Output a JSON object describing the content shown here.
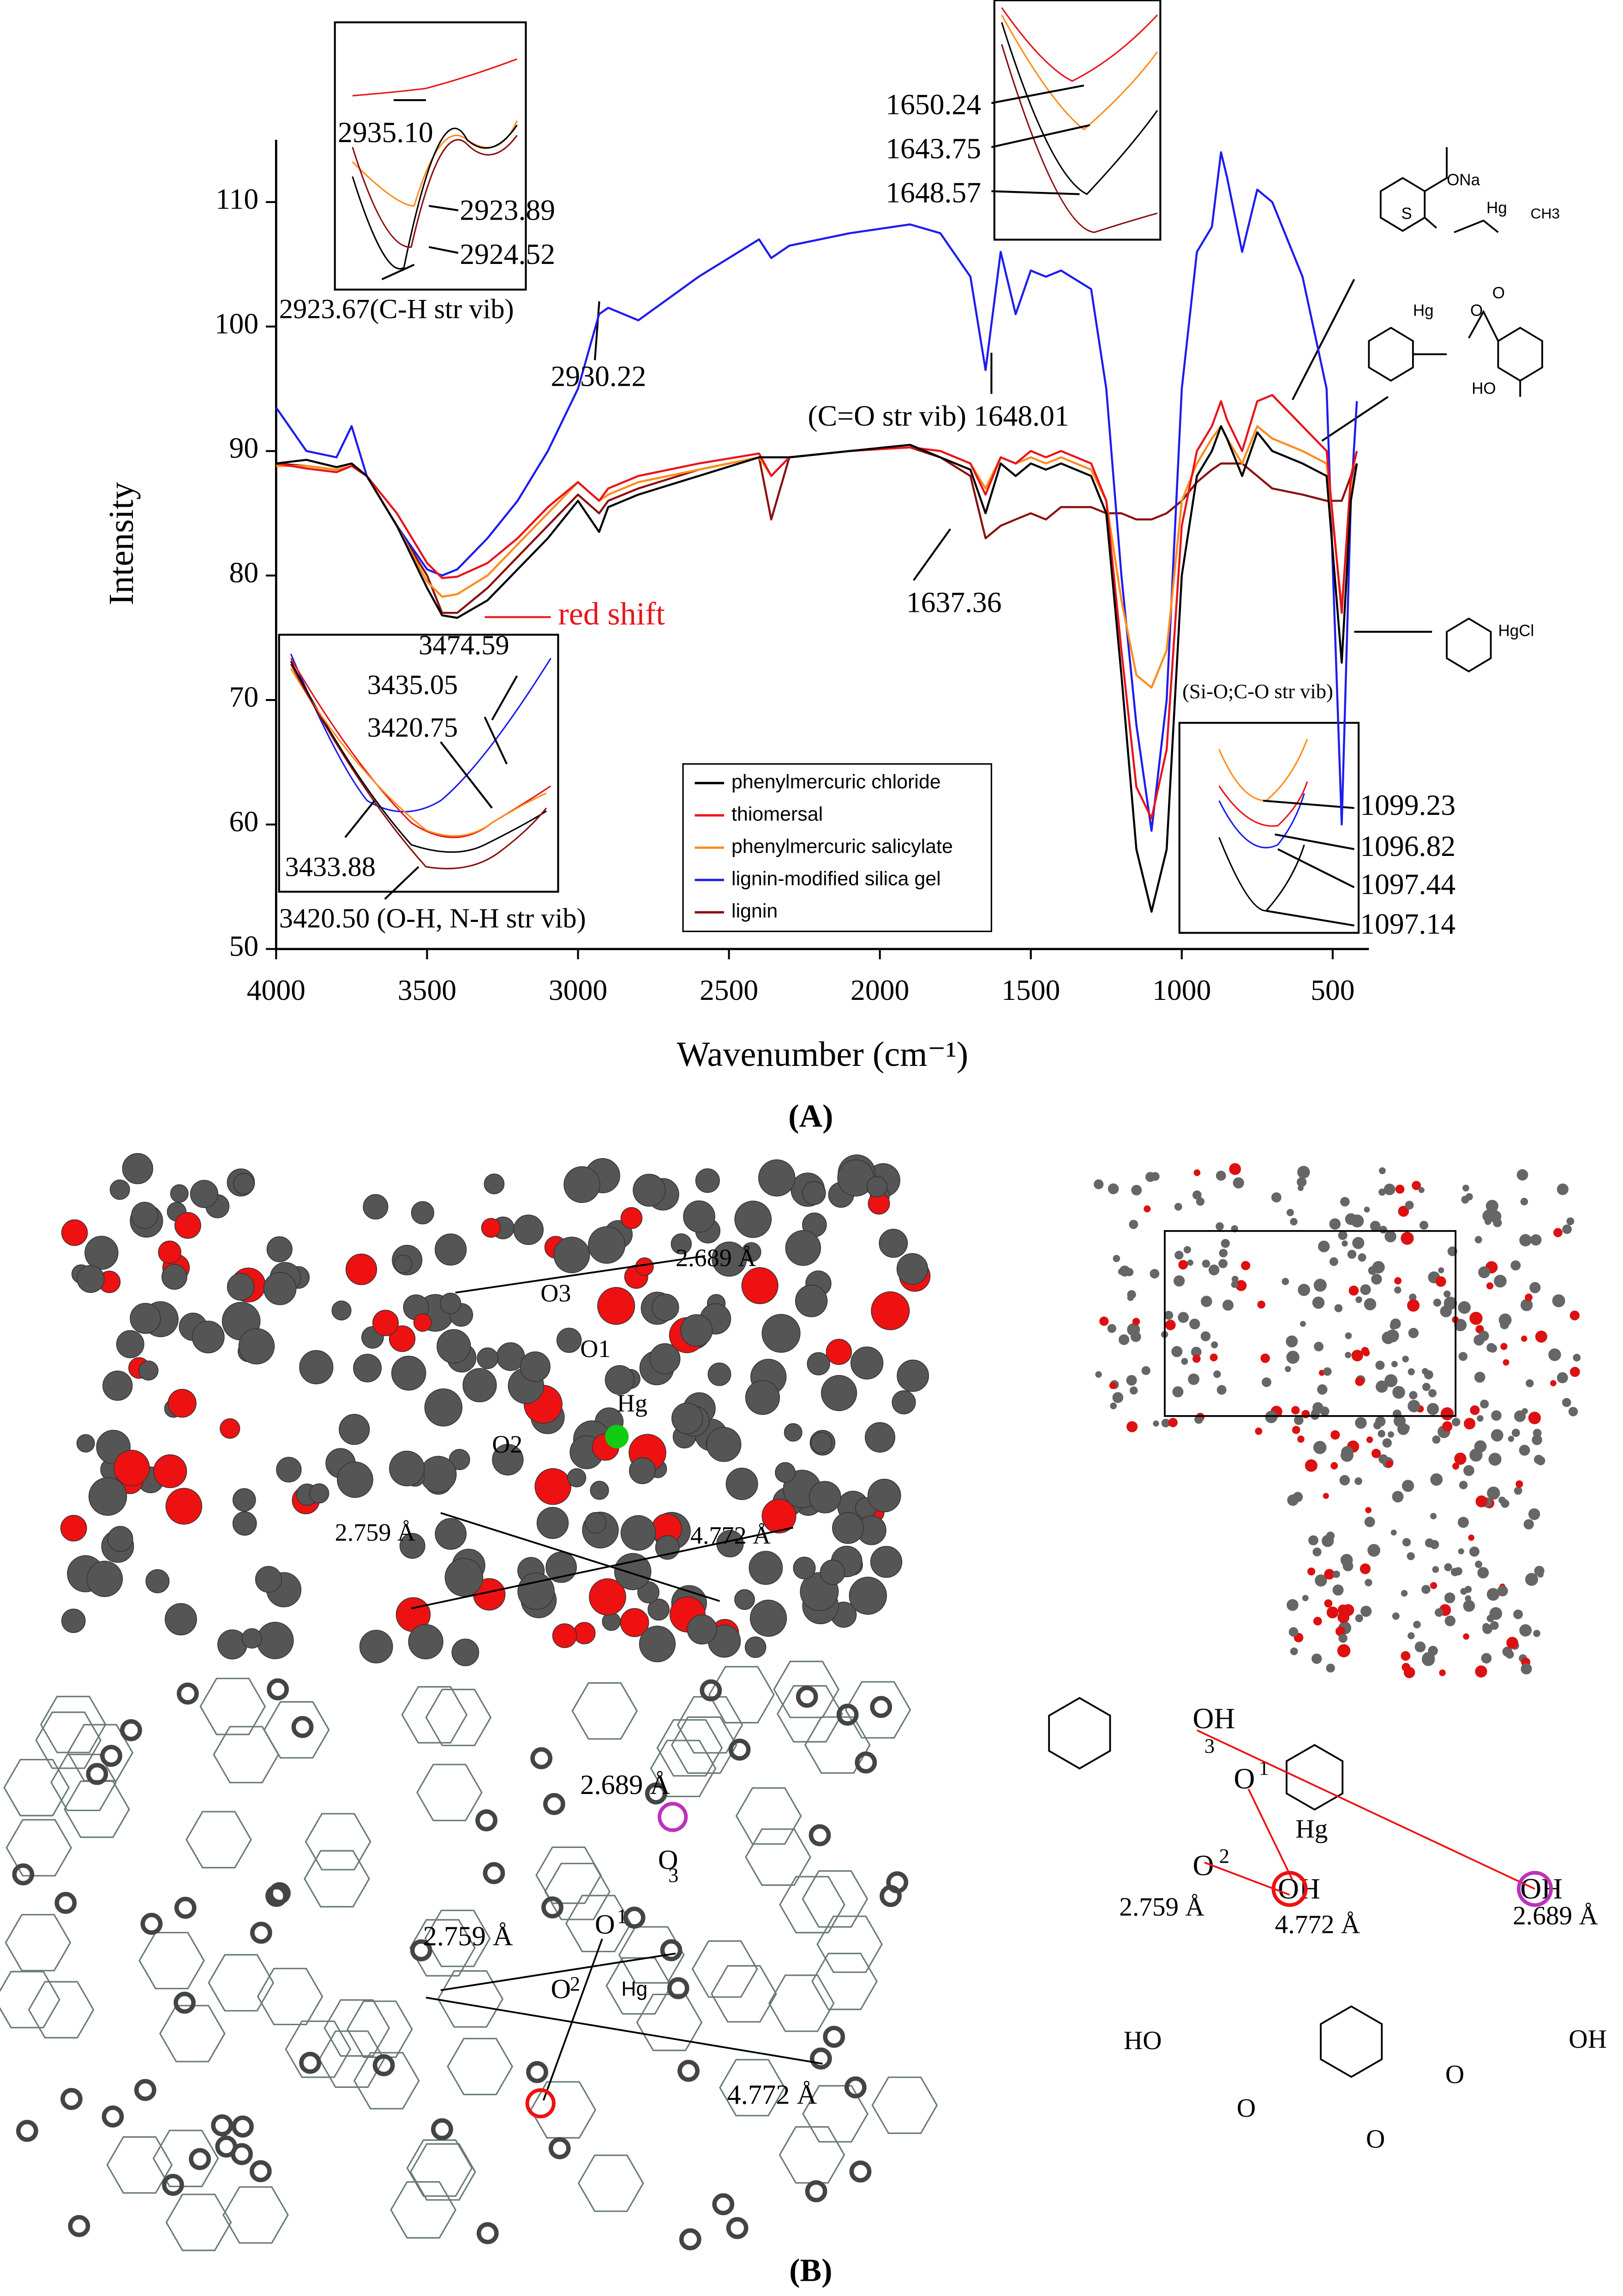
{
  "chart_data": {
    "type": "line",
    "x_label": "Wavenumber (cm⁻¹)",
    "y_label": "Intensity",
    "xlim": [
      4000,
      380
    ],
    "ylim": [
      50,
      115
    ],
    "xticks": [
      4000,
      3500,
      3000,
      2500,
      2000,
      1500,
      1000,
      500
    ],
    "yticks": [
      50,
      60,
      70,
      80,
      90,
      100,
      110
    ],
    "legend": "lower center",
    "x": [
      4000,
      3900,
      3800,
      3750,
      3700,
      3600,
      3500,
      3450,
      3400,
      3300,
      3200,
      3100,
      3000,
      2930,
      2900,
      2800,
      2600,
      2400,
      2360,
      2300,
      2100,
      1900,
      1800,
      1700,
      1650,
      1600,
      1550,
      1500,
      1450,
      1400,
      1300,
      1250,
      1200,
      1150,
      1100,
      1050,
      1000,
      950,
      900,
      870,
      850,
      800,
      750,
      700,
      600,
      520,
      470,
      440,
      420
    ],
    "series": [
      {
        "name": "phenylmercuric chloride",
        "color": "#000000",
        "values": [
          89,
          89.3,
          88.7,
          89,
          88,
          84,
          79,
          76.8,
          76.6,
          78,
          80.5,
          83,
          86,
          83.5,
          85.5,
          86.5,
          88,
          89.5,
          89.5,
          89.5,
          90,
          90.5,
          89.5,
          88.5,
          85,
          89,
          88,
          89,
          88.5,
          89,
          88,
          85,
          72,
          58,
          53,
          58,
          80,
          88,
          90,
          92,
          91,
          88,
          91.5,
          90,
          89,
          88,
          73,
          86,
          89
        ]
      },
      {
        "name": "thiomersal",
        "color": "#e8141b",
        "values": [
          89,
          88.6,
          88.3,
          88.8,
          88,
          85,
          81,
          79.8,
          79.9,
          81,
          83,
          85.5,
          87.5,
          86,
          87,
          88,
          89,
          89.8,
          88,
          89.5,
          90,
          90.3,
          90,
          89,
          86.5,
          89.5,
          89,
          90,
          89.5,
          90,
          89,
          86,
          74,
          63,
          60.5,
          66,
          84,
          90,
          92,
          94,
          92.5,
          90,
          94,
          94.5,
          92,
          90,
          77,
          88,
          90
        ]
      },
      {
        "name": "phenylmercuric salicylate",
        "color": "#ff8c1a",
        "values": [
          88.8,
          88.8,
          88.5,
          88.8,
          88,
          84,
          79.5,
          78.3,
          78.5,
          80,
          82.5,
          85,
          87.5,
          86,
          86.5,
          87.5,
          88.5,
          89.5,
          88,
          89.5,
          90,
          90.3,
          90,
          89,
          87,
          89.5,
          89,
          89.5,
          89,
          89.5,
          88.5,
          86,
          78,
          72,
          71,
          74,
          86,
          89,
          91,
          92,
          91,
          89,
          92,
          91,
          90,
          89,
          77.5,
          87,
          89
        ]
      },
      {
        "name": "lignin-modified silica gel",
        "color": "#1c1cf0",
        "values": [
          93.5,
          90,
          89.5,
          92,
          88,
          84,
          80.5,
          80,
          80.5,
          83,
          86,
          90,
          95,
          101,
          101.5,
          100.5,
          104,
          107,
          105.5,
          106.5,
          107.5,
          108.2,
          107.5,
          104,
          96.5,
          106,
          101,
          104.5,
          104,
          104.5,
          103,
          95,
          80,
          68,
          59.5,
          70,
          95,
          106,
          108,
          114,
          112,
          106,
          111,
          110,
          104,
          95,
          60,
          86,
          94
        ]
      },
      {
        "name": "lignin",
        "color": "#8b0f0f",
        "values": [
          89,
          88.8,
          88.5,
          88.8,
          88,
          84,
          80,
          77,
          77,
          79,
          81.5,
          84,
          86.5,
          85,
          86,
          87,
          88.5,
          89.5,
          84.5,
          89.5,
          90,
          90.3,
          89.5,
          88,
          83,
          84,
          84.5,
          85,
          84.5,
          85.5,
          85.5,
          85,
          85,
          84.5,
          84.5,
          85,
          86,
          87.5,
          88.5,
          89,
          89,
          89,
          88,
          87,
          86.5,
          86,
          86,
          88,
          89
        ]
      }
    ],
    "annotations": [
      "2935.10",
      "2923.89",
      "2924.52",
      "2923.67(C-H str vib)",
      "2930.22",
      "1650.24",
      "1643.75",
      "1648.57",
      "(C=O str vib) 1648.01",
      "1637.36",
      "red shift",
      "3474.59",
      "3435.05",
      "3420.75",
      "3433.88",
      "3420.50 (O-H, N-H str vib)",
      "(Si-O;C-O str  vib)",
      "1099.23",
      "1096.82",
      "1097.44",
      "1097.14"
    ],
    "structure_labels": [
      "ONa",
      "S",
      "Hg",
      "CH3",
      "Hg",
      "O",
      "O",
      "HO",
      "HgCl"
    ]
  },
  "panel_a_label": "(A)",
  "panel_b": {
    "label": "(B)",
    "ball_model": [
      "2.689 Å",
      "O3",
      "O1",
      "Hg",
      "O2",
      "2.759 Å",
      "4.772 Å"
    ],
    "wire_model": [
      "2.689 Å",
      "O",
      "3",
      "O",
      "1",
      "Hg",
      "O",
      "2",
      "2.759 Å",
      "4.772 Å"
    ],
    "structure": [
      "OH",
      "3",
      "O",
      "1",
      "Hg",
      "O",
      "2",
      "2.759 Å",
      "4.772 Å",
      "2.689 Å",
      "OH",
      "OH",
      "HO",
      "OH",
      "O",
      "O",
      "O"
    ]
  }
}
